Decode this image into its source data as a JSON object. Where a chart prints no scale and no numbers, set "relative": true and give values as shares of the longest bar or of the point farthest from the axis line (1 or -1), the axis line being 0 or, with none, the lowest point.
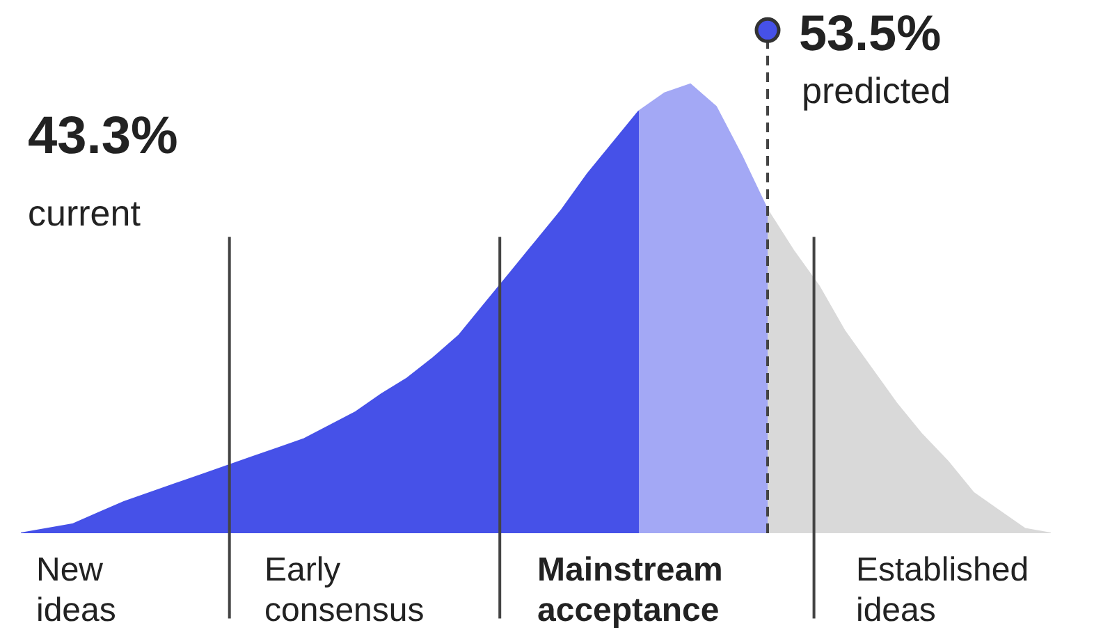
{
  "chart_data": {
    "type": "area",
    "relative": true,
    "categories": [
      null,
      null,
      null,
      null,
      null,
      null,
      null,
      null,
      null,
      null,
      null,
      null,
      null,
      null,
      null,
      null,
      null,
      null,
      null,
      null,
      null,
      null,
      null,
      null,
      null,
      null,
      null,
      null,
      null,
      null,
      null,
      null,
      null,
      null,
      null,
      null,
      null,
      null,
      null,
      null,
      null
    ],
    "series": [
      {
        "color": "#4651e8",
        "values": [
          0,
          0.01,
          0.02,
          0.045,
          0.07,
          0.09,
          0.11,
          0.13,
          0.15,
          0.17,
          0.19,
          0.21,
          0.24,
          0.27,
          0.31,
          0.345,
          0.39,
          0.44,
          0.51,
          0.58,
          0.65,
          0.72,
          0.8,
          0.87,
          0.94,
          null,
          null,
          null,
          null,
          null,
          null,
          null,
          null,
          null,
          null,
          null,
          null,
          null,
          null,
          null,
          null
        ]
      },
      {
        "color": "#a3a8f5",
        "values": [
          null,
          null,
          null,
          null,
          null,
          null,
          null,
          null,
          null,
          null,
          null,
          null,
          null,
          null,
          null,
          null,
          null,
          null,
          null,
          null,
          null,
          null,
          null,
          null,
          0.94,
          0.98,
          1,
          0.95,
          0.84,
          0.72,
          null,
          null,
          null,
          null,
          null,
          null,
          null,
          null,
          null,
          null,
          null
        ]
      },
      {
        "color": "#d9d9d9",
        "values": [
          null,
          null,
          null,
          null,
          null,
          null,
          null,
          null,
          null,
          null,
          null,
          null,
          null,
          null,
          null,
          null,
          null,
          null,
          null,
          null,
          null,
          null,
          null,
          null,
          null,
          null,
          null,
          null,
          null,
          0.72,
          0.63,
          0.55,
          0.45,
          0.37,
          0.29,
          0.22,
          0.16,
          0.09,
          0.05,
          0.01,
          0
        ]
      }
    ],
    "annotations": [
      "43.3%",
      "current",
      "53.5%",
      "predicted",
      "New ideas",
      "Early consensus",
      "Mainstream acceptance",
      "Established ideas"
    ]
  }
}
